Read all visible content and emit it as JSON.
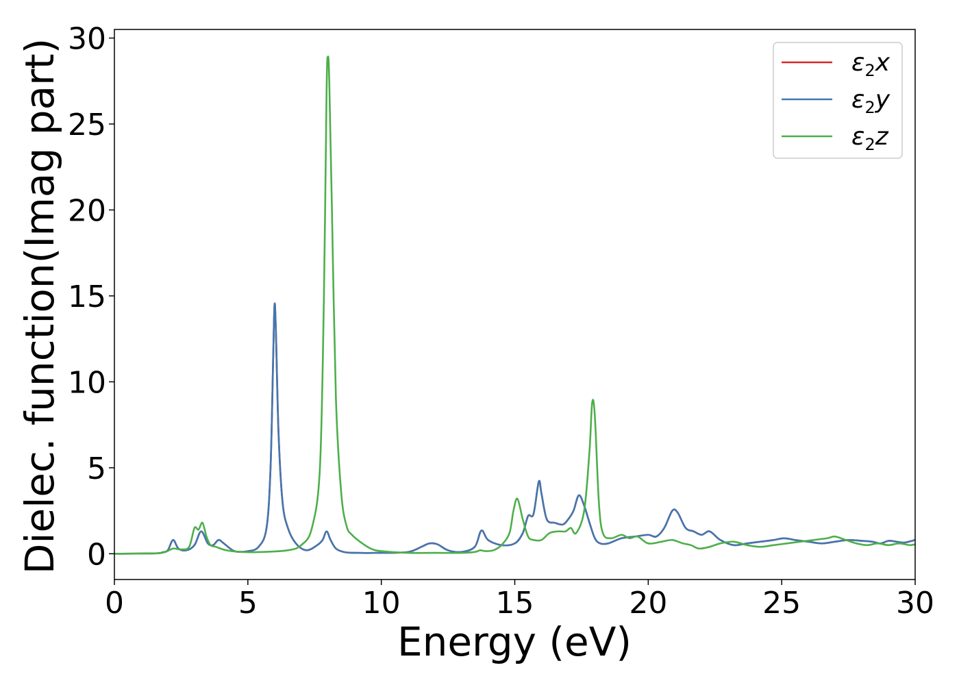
{
  "chart_data": {
    "type": "line",
    "title": "",
    "xlabel": "Energy (eV)",
    "ylabel": "Dielec. function(Imag part)",
    "xlim": [
      0,
      30
    ],
    "ylim": [
      -1.5,
      30.5
    ],
    "xticks": [
      0,
      5,
      10,
      15,
      20,
      25,
      30
    ],
    "yticks": [
      0,
      5,
      10,
      15,
      20,
      25,
      30
    ],
    "grid": false,
    "legend_position": "top-right",
    "series": [
      {
        "name": "ε2x",
        "legend": {
          "base": "ε",
          "sub": "2",
          "var": "x"
        },
        "color": "#d62728",
        "x": [
          0,
          1.5,
          1.8,
          2.0,
          2.2,
          2.4,
          2.7,
          3.0,
          3.25,
          3.5,
          3.7,
          3.9,
          4.1,
          4.5,
          5.0,
          5.4,
          5.7,
          5.85,
          5.95,
          6.0,
          6.05,
          6.15,
          6.3,
          6.5,
          6.8,
          7.2,
          7.6,
          7.8,
          7.95,
          8.1,
          8.3,
          8.6,
          9.0,
          10.0,
          11.0,
          11.5,
          11.8,
          12.1,
          12.5,
          13.0,
          13.5,
          13.75,
          14.0,
          14.5,
          15.0,
          15.3,
          15.5,
          15.7,
          15.9,
          16.0,
          16.2,
          16.5,
          16.8,
          17.0,
          17.2,
          17.4,
          17.6,
          17.8,
          18.0,
          18.2,
          18.5,
          19.0,
          19.5,
          20.0,
          20.3,
          20.6,
          20.9,
          21.1,
          21.4,
          21.7,
          22.0,
          22.3,
          22.7,
          23.2,
          23.7,
          24.2,
          24.7,
          25.1,
          25.5,
          26.0,
          26.5,
          27.0,
          27.5,
          28.0,
          28.4,
          28.7,
          29.0,
          29.3,
          29.6,
          30.0
        ],
        "values": [
          0.0,
          0.02,
          0.08,
          0.2,
          0.8,
          0.3,
          0.2,
          0.5,
          1.3,
          0.6,
          0.5,
          0.8,
          0.6,
          0.15,
          0.15,
          0.4,
          1.5,
          5.0,
          11.5,
          14.5,
          13.0,
          7.0,
          3.0,
          1.5,
          0.6,
          0.2,
          0.5,
          0.8,
          1.3,
          0.8,
          0.3,
          0.1,
          0.05,
          0.05,
          0.1,
          0.4,
          0.6,
          0.55,
          0.2,
          0.1,
          0.4,
          1.35,
          0.8,
          0.5,
          0.6,
          1.2,
          2.2,
          2.3,
          4.2,
          3.5,
          2.0,
          1.8,
          1.7,
          2.0,
          2.5,
          3.4,
          2.8,
          1.8,
          0.9,
          0.6,
          0.6,
          0.9,
          1.0,
          1.1,
          1.0,
          1.5,
          2.5,
          2.4,
          1.5,
          1.3,
          1.1,
          1.3,
          0.8,
          0.5,
          0.6,
          0.7,
          0.8,
          0.9,
          0.8,
          0.7,
          0.6,
          0.7,
          0.8,
          0.75,
          0.7,
          0.6,
          0.75,
          0.7,
          0.65,
          0.8
        ]
      },
      {
        "name": "ε2y",
        "legend": {
          "base": "ε",
          "sub": "2",
          "var": "y"
        },
        "color": "#4277b1",
        "x": [
          0,
          1.5,
          1.8,
          2.0,
          2.2,
          2.4,
          2.7,
          3.0,
          3.25,
          3.5,
          3.7,
          3.9,
          4.1,
          4.5,
          5.0,
          5.4,
          5.7,
          5.85,
          5.95,
          6.0,
          6.05,
          6.15,
          6.3,
          6.5,
          6.8,
          7.2,
          7.6,
          7.8,
          7.95,
          8.1,
          8.3,
          8.6,
          9.0,
          10.0,
          11.0,
          11.5,
          11.8,
          12.1,
          12.5,
          13.0,
          13.5,
          13.75,
          14.0,
          14.5,
          15.0,
          15.3,
          15.5,
          15.7,
          15.9,
          16.0,
          16.2,
          16.5,
          16.8,
          17.0,
          17.2,
          17.4,
          17.6,
          17.8,
          18.0,
          18.2,
          18.5,
          19.0,
          19.5,
          20.0,
          20.3,
          20.6,
          20.9,
          21.1,
          21.4,
          21.7,
          22.0,
          22.3,
          22.7,
          23.2,
          23.7,
          24.2,
          24.7,
          25.1,
          25.5,
          26.0,
          26.5,
          27.0,
          27.5,
          28.0,
          28.4,
          28.7,
          29.0,
          29.3,
          29.6,
          30.0
        ],
        "values": [
          0.0,
          0.02,
          0.08,
          0.2,
          0.8,
          0.3,
          0.2,
          0.5,
          1.3,
          0.6,
          0.5,
          0.8,
          0.6,
          0.15,
          0.15,
          0.4,
          1.5,
          5.0,
          11.5,
          14.5,
          13.0,
          7.0,
          3.0,
          1.5,
          0.6,
          0.2,
          0.5,
          0.8,
          1.3,
          0.8,
          0.3,
          0.1,
          0.05,
          0.05,
          0.1,
          0.4,
          0.6,
          0.55,
          0.2,
          0.1,
          0.4,
          1.35,
          0.8,
          0.5,
          0.6,
          1.2,
          2.2,
          2.3,
          4.2,
          3.5,
          2.0,
          1.8,
          1.7,
          2.0,
          2.5,
          3.4,
          2.8,
          1.8,
          0.9,
          0.6,
          0.6,
          0.9,
          1.0,
          1.1,
          1.0,
          1.5,
          2.5,
          2.4,
          1.5,
          1.3,
          1.1,
          1.3,
          0.8,
          0.5,
          0.6,
          0.7,
          0.8,
          0.9,
          0.8,
          0.7,
          0.6,
          0.7,
          0.8,
          0.75,
          0.7,
          0.6,
          0.75,
          0.7,
          0.65,
          0.8
        ]
      },
      {
        "name": "ε2z",
        "legend": {
          "base": "ε",
          "sub": "2",
          "var": "z"
        },
        "color": "#4daf4a",
        "x": [
          0,
          1.5,
          1.9,
          2.2,
          2.5,
          2.8,
          3.0,
          3.15,
          3.3,
          3.45,
          3.6,
          3.8,
          4.2,
          4.8,
          5.5,
          6.5,
          7.0,
          7.4,
          7.7,
          7.85,
          7.95,
          8.0,
          8.05,
          8.15,
          8.3,
          8.5,
          8.7,
          8.9,
          9.2,
          9.6,
          10.0,
          11.0,
          12.0,
          13.0,
          13.5,
          13.7,
          13.9,
          14.2,
          14.5,
          14.8,
          14.95,
          15.1,
          15.3,
          15.5,
          15.7,
          16.0,
          16.3,
          16.6,
          16.9,
          17.1,
          17.3,
          17.6,
          17.8,
          17.9,
          18.0,
          18.15,
          18.3,
          18.6,
          19.0,
          19.3,
          19.6,
          20.0,
          20.5,
          20.9,
          21.3,
          21.6,
          21.9,
          22.3,
          22.7,
          23.2,
          23.7,
          24.2,
          24.7,
          25.2,
          25.7,
          26.2,
          26.7,
          27.0,
          27.4,
          27.8,
          28.2,
          28.6,
          29.0,
          29.4,
          29.8,
          30.0
        ],
        "values": [
          0.0,
          0.02,
          0.1,
          0.3,
          0.25,
          0.4,
          1.5,
          1.4,
          1.8,
          1.0,
          0.5,
          0.4,
          0.2,
          0.1,
          0.1,
          0.2,
          0.5,
          1.5,
          5.0,
          15.0,
          27.0,
          28.9,
          27.5,
          20.0,
          9.0,
          3.5,
          1.6,
          1.1,
          0.7,
          0.3,
          0.15,
          0.05,
          0.05,
          0.05,
          0.1,
          0.2,
          0.15,
          0.2,
          0.5,
          1.2,
          2.5,
          3.2,
          2.0,
          1.0,
          0.8,
          0.8,
          1.2,
          1.3,
          1.3,
          1.5,
          1.2,
          2.5,
          6.0,
          8.8,
          8.0,
          3.0,
          1.2,
          0.9,
          1.1,
          0.9,
          1.0,
          0.6,
          0.7,
          0.8,
          0.6,
          0.5,
          0.3,
          0.4,
          0.6,
          0.7,
          0.5,
          0.4,
          0.5,
          0.6,
          0.7,
          0.8,
          0.9,
          1.0,
          0.8,
          0.6,
          0.5,
          0.6,
          0.5,
          0.6,
          0.5,
          0.55
        ]
      }
    ]
  }
}
